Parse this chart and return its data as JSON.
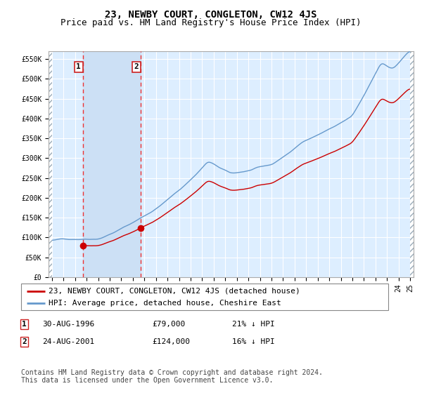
{
  "title": "23, NEWBY COURT, CONGLETON, CW12 4JS",
  "subtitle": "Price paid vs. HM Land Registry's House Price Index (HPI)",
  "ylim": [
    0,
    570000
  ],
  "yticks": [
    0,
    50000,
    100000,
    150000,
    200000,
    250000,
    300000,
    350000,
    400000,
    450000,
    500000,
    550000
  ],
  "ytick_labels": [
    "£0",
    "£50K",
    "£100K",
    "£150K",
    "£200K",
    "£250K",
    "£300K",
    "£350K",
    "£400K",
    "£450K",
    "£500K",
    "£550K"
  ],
  "price_color": "#cc0000",
  "hpi_color": "#6699cc",
  "bg_color": "#ddeeff",
  "shade_color": "#cce0f5",
  "grid_color": "#ffffff",
  "dashed_line_color": "#ee3333",
  "transaction1_date": 1996.66,
  "transaction1_price": 79000,
  "transaction2_date": 2001.65,
  "transaction2_price": 124000,
  "legend_price_label": "23, NEWBY COURT, CONGLETON, CW12 4JS (detached house)",
  "legend_hpi_label": "HPI: Average price, detached house, Cheshire East",
  "note1_num": "1",
  "note1_date": "30-AUG-1996",
  "note1_price": "£79,000",
  "note1_hpi": "21% ↓ HPI",
  "note2_num": "2",
  "note2_date": "24-AUG-2001",
  "note2_price": "£124,000",
  "note2_hpi": "16% ↓ HPI",
  "footnote": "Contains HM Land Registry data © Crown copyright and database right 2024.\nThis data is licensed under the Open Government Licence v3.0.",
  "title_fontsize": 10,
  "subtitle_fontsize": 9,
  "tick_fontsize": 7,
  "legend_fontsize": 8,
  "note_fontsize": 8,
  "footnote_fontsize": 7,
  "xlim_left": 1993.7,
  "xlim_right": 2025.3
}
